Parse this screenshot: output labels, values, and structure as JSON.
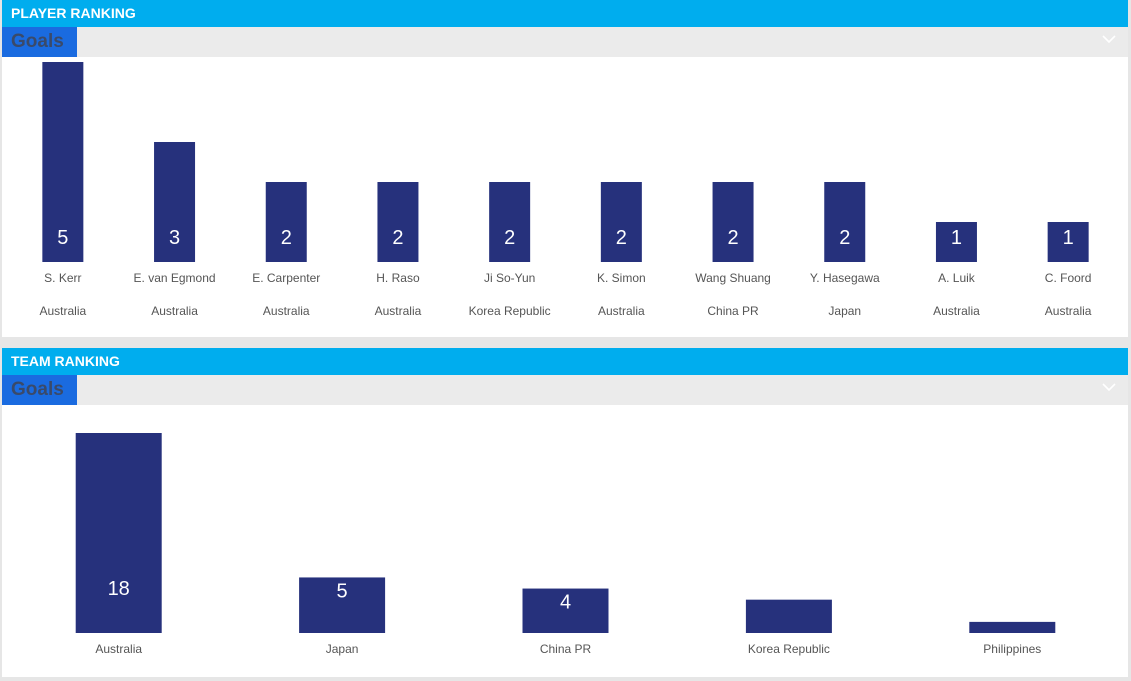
{
  "player_panel": {
    "title": "PLAYER RANKING",
    "metric_select": "Goals"
  },
  "team_panel": {
    "title": "TEAM RANKING",
    "metric_select": "Goals"
  },
  "colors": {
    "header": "#00adee",
    "bar": "#26317c",
    "select": "#1a6be0"
  },
  "icons": {
    "dropdown": "chevron-down-icon"
  },
  "chart_data": [
    {
      "type": "bar",
      "title": "PLAYER RANKING",
      "metric": "Goals",
      "categories": [
        "S. Kerr",
        "E. van Egmond",
        "E. Carpenter",
        "H. Raso",
        "Ji So-Yun",
        "K. Simon",
        "Wang Shuang",
        "Y. Hasegawa",
        "A. Luik",
        "C. Foord"
      ],
      "subcategories": [
        "Australia",
        "Australia",
        "Australia",
        "Australia",
        "Korea Republic",
        "Australia",
        "China PR",
        "Japan",
        "Australia",
        "Australia"
      ],
      "values": [
        5,
        3,
        2,
        2,
        2,
        2,
        2,
        2,
        1,
        1
      ],
      "value_labels": [
        "5",
        "3",
        "2",
        "2",
        "2",
        "2",
        "2",
        "2",
        "1",
        "1"
      ],
      "ylim": [
        0,
        5
      ]
    },
    {
      "type": "bar",
      "title": "TEAM RANKING",
      "metric": "Goals",
      "categories": [
        "Australia",
        "Japan",
        "China PR",
        "Korea Republic",
        "Philippines"
      ],
      "values": [
        18,
        5,
        4,
        3,
        1
      ],
      "value_labels": [
        "18",
        "5",
        "4",
        "",
        ""
      ],
      "ylim": [
        0,
        18
      ]
    }
  ]
}
